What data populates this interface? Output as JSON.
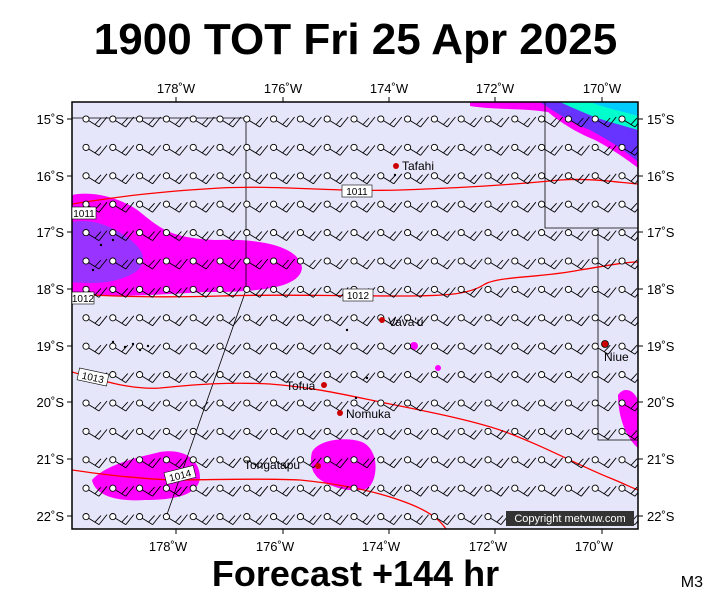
{
  "title": "1900 TOT Fri 25 Apr 2025",
  "footer": "Forecast +144 hr",
  "model_label": "M3",
  "copyright": "Copyright metvuw.com",
  "colors": {
    "sea": "#e6e6fa",
    "isobar": "#ff0000",
    "rain_light": "#ff00ff",
    "rain_heavy": "#9933ff",
    "rain_extreme": "#00ffcc",
    "place_dot": "#cc0000"
  },
  "axes": {
    "lon_labels": [
      "178˚W",
      "176˚W",
      "174˚W",
      "172˚W",
      "170˚W"
    ],
    "lat_labels": [
      "15˚S",
      "16˚S",
      "17˚S",
      "18˚S",
      "19˚S",
      "20˚S",
      "21˚S",
      "22˚S"
    ]
  },
  "places": [
    {
      "name": "Tafahi"
    },
    {
      "name": "Vava'u"
    },
    {
      "name": "Niue"
    },
    {
      "name": "Tofua"
    },
    {
      "name": "Nomuka"
    },
    {
      "name": "Tongatapu"
    }
  ],
  "isobars": [
    "1011",
    "1011",
    "1012",
    "1012",
    "1013",
    "1014"
  ],
  "legend_icons": {
    "wind_barb": "wind-barb-icon",
    "place": "place-dot-icon"
  }
}
